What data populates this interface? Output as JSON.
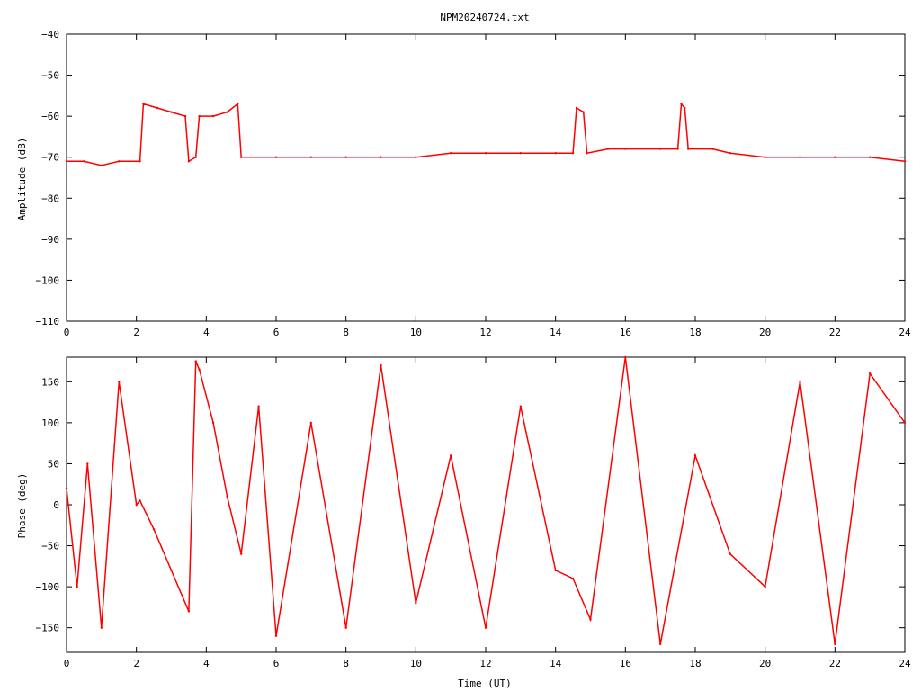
{
  "title": "NPM20240724.txt",
  "chart_data": [
    {
      "type": "line",
      "panel": "top",
      "ylabel": "Amplitude (dB)",
      "xlabel": "",
      "xlim": [
        0,
        24
      ],
      "ylim": [
        -110,
        -40
      ],
      "xticks": [
        0,
        2,
        4,
        6,
        8,
        10,
        12,
        14,
        16,
        18,
        20,
        22,
        24
      ],
      "yticks": [
        -40,
        -50,
        -60,
        -70,
        -80,
        -90,
        -100,
        -110
      ],
      "yticklabels": [
        "−40",
        "−50",
        "−60",
        "−70",
        "−80",
        "−90",
        "−100",
        "−110"
      ],
      "series": [
        {
          "color": "#ff0000",
          "x": [
            0,
            0.5,
            1,
            1.5,
            2.1,
            2.2,
            2.6,
            3.0,
            3.4,
            3.5,
            3.7,
            3.8,
            4.2,
            4.6,
            4.9,
            5.0,
            6,
            7,
            8,
            9,
            10,
            11,
            12,
            13,
            14,
            14.5,
            14.6,
            14.8,
            14.9,
            15.5,
            16,
            17,
            17.5,
            17.6,
            17.7,
            17.8,
            18.5,
            19,
            20,
            21,
            22,
            23,
            24
          ],
          "y": [
            -71,
            -71,
            -72,
            -71,
            -71,
            -57,
            -58,
            -59,
            -60,
            -71,
            -70,
            -60,
            -60,
            -59,
            -57,
            -70,
            -70,
            -70,
            -70,
            -70,
            -70,
            -69,
            -69,
            -69,
            -69,
            -69,
            -58,
            -59,
            -69,
            -68,
            -68,
            -68,
            -68,
            -57,
            -58,
            -68,
            -68,
            -69,
            -70,
            -70,
            -70,
            -70,
            -71
          ]
        }
      ]
    },
    {
      "type": "line",
      "panel": "bottom",
      "ylabel": "Phase (deg)",
      "xlabel": "Time (UT)",
      "xlim": [
        0,
        24
      ],
      "ylim": [
        -180,
        180
      ],
      "xticks": [
        0,
        2,
        4,
        6,
        8,
        10,
        12,
        14,
        16,
        18,
        20,
        22,
        24
      ],
      "yticks": [
        150,
        100,
        50,
        0,
        -50,
        -100,
        -150
      ],
      "yticklabels": [
        "150",
        "100",
        "50",
        "0",
        "−50",
        "−100",
        "−150"
      ],
      "series": [
        {
          "color": "#ff0000",
          "x": [
            0,
            0.3,
            0.6,
            1.0,
            1.5,
            2.0,
            2.1,
            2.5,
            3.0,
            3.5,
            3.7,
            3.8,
            4.2,
            4.6,
            5.0,
            5.5,
            6.0,
            7.0,
            8.0,
            9.0,
            10.0,
            11.0,
            12.0,
            13.0,
            14.0,
            14.5,
            15.0,
            16.0,
            17.0,
            18.0,
            19.0,
            20.0,
            21.0,
            22.0,
            23.0,
            24.0
          ],
          "y": [
            20,
            -100,
            50,
            -150,
            150,
            0,
            5,
            -30,
            -80,
            -130,
            175,
            165,
            100,
            10,
            -60,
            120,
            -160,
            100,
            -150,
            170,
            -120,
            60,
            -150,
            120,
            -80,
            -90,
            -140,
            180,
            -170,
            60,
            -60,
            -100,
            150,
            -170,
            160,
            100
          ]
        }
      ]
    }
  ]
}
